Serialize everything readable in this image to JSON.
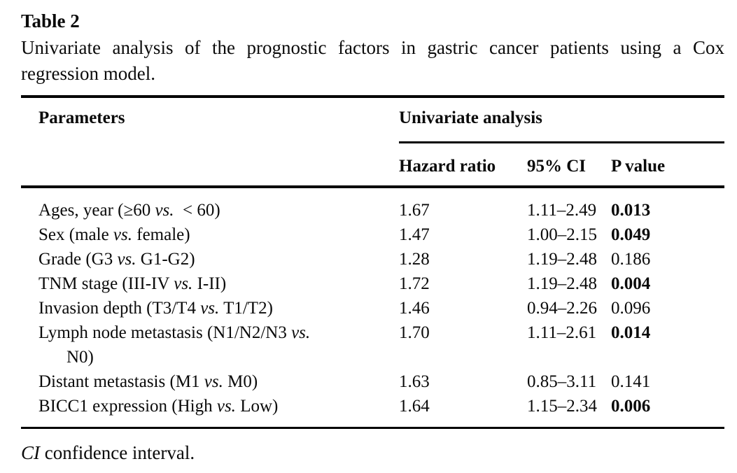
{
  "colors": {
    "background": "#ffffff",
    "text": "#0a0a0a",
    "rule": "#000000"
  },
  "figure": {
    "title": "Table 2",
    "caption": "Univariate analysis of the prognostic factors in gastric cancer patients using a Cox regression model."
  },
  "table": {
    "parameters_header": "Parameters",
    "group_header": "Univariate analysis",
    "sub_headers": [
      "Hazard ratio",
      "95% CI",
      "P value"
    ],
    "rows": [
      {
        "label_pre": "Ages, year (≥60 ",
        "label_vs": "vs.",
        "label_post": "  < 60)",
        "hr": "1.67",
        "ci": "1.11–2.49",
        "p": "0.013",
        "p_bold": true
      },
      {
        "label_pre": "Sex (male ",
        "label_vs": "vs.",
        "label_post": " female)",
        "hr": "1.47",
        "ci": "1.00–2.15",
        "p": "0.049",
        "p_bold": true
      },
      {
        "label_pre": "Grade (G3 ",
        "label_vs": "vs.",
        "label_post": " G1-G2)",
        "hr": "1.28",
        "ci": "1.19–2.48",
        "p": "0.186",
        "p_bold": false
      },
      {
        "label_pre": "TNM stage (III-IV ",
        "label_vs": "vs.",
        "label_post": " I-II)",
        "hr": "1.72",
        "ci": "1.19–2.48",
        "p": "0.004",
        "p_bold": true
      },
      {
        "label_pre": "Invasion depth (T3/T4 ",
        "label_vs": "vs.",
        "label_post": " T1/T2)",
        "hr": "1.46",
        "ci": "0.94–2.26",
        "p": "0.096",
        "p_bold": false
      },
      {
        "label_pre": "Lymph node metastasis (N1/N2/N3 ",
        "label_vs": "vs.",
        "label_post": "\nN0)",
        "hr": "1.70",
        "ci": "1.11–2.61",
        "p": "0.014",
        "p_bold": true
      },
      {
        "label_pre": "Distant metastasis (M1 ",
        "label_vs": "vs.",
        "label_post": " M0)",
        "hr": "1.63",
        "ci": "0.85–3.11",
        "p": "0.141",
        "p_bold": false
      },
      {
        "label_pre": "BICC1 expression (High ",
        "label_vs": "vs.",
        "label_post": " Low)",
        "hr": "1.64",
        "ci": "1.15–2.34",
        "p": "0.006",
        "p_bold": true
      }
    ]
  },
  "footnote": {
    "abbr": "CI",
    "text": " confidence interval."
  }
}
